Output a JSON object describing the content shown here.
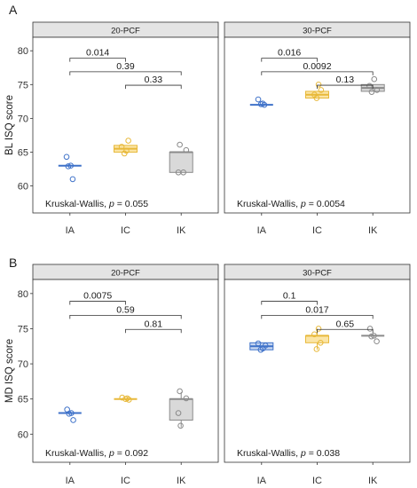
{
  "figure": {
    "colors": {
      "IA": "#3f72c9",
      "IC": "#e8b93a",
      "IK": "#8a8a8a",
      "IA_fill": "#c7d6f0",
      "IC_fill": "#fbe5a6",
      "IK_fill": "#d9d9d9"
    }
  },
  "chart_data": [
    {
      "type": "box",
      "panel_label": "A",
      "ylabel": "BL ISQ score",
      "ylim": [
        56,
        82
      ],
      "yticks": [
        60,
        65,
        70,
        75,
        80
      ],
      "categories": [
        "IA",
        "IC",
        "IK"
      ],
      "facets": [
        {
          "strip": "20-PCF",
          "boxes": [
            {
              "group": "IA",
              "q1": 63,
              "median": 63,
              "q3": 63,
              "min": 63,
              "max": 63
            },
            {
              "group": "IC",
              "q1": 65,
              "median": 65.5,
              "q3": 66,
              "min": 65,
              "max": 66
            },
            {
              "group": "IK",
              "q1": 62,
              "median": 65,
              "q3": 65,
              "min": 62,
              "max": 65
            }
          ],
          "points": [
            {
              "group": "IA",
              "y": 64.3,
              "dx": -0.12
            },
            {
              "group": "IA",
              "y": 63.0,
              "dx": 0.03
            },
            {
              "group": "IA",
              "y": 62.9,
              "dx": -0.06
            },
            {
              "group": "IA",
              "y": 61.0,
              "dx": 0.1
            },
            {
              "group": "IC",
              "y": 66.7,
              "dx": 0.1
            },
            {
              "group": "IC",
              "y": 65.8,
              "dx": -0.14
            },
            {
              "group": "IC",
              "y": 65.2,
              "dx": 0.03
            },
            {
              "group": "IC",
              "y": 64.8,
              "dx": -0.04
            },
            {
              "group": "IK",
              "y": 66.1,
              "dx": -0.05
            },
            {
              "group": "IK",
              "y": 65.3,
              "dx": 0.18
            },
            {
              "group": "IK",
              "y": 62.0,
              "dx": -0.1
            },
            {
              "group": "IK",
              "y": 62.0,
              "dx": 0.08
            }
          ],
          "brackets": [
            {
              "from": "IA",
              "to": "IC",
              "y": 78.9,
              "label": "0.014"
            },
            {
              "from": "IA",
              "to": "IK",
              "y": 76.9,
              "label": "0.39"
            },
            {
              "from": "IC",
              "to": "IK",
              "y": 74.9,
              "label": "0.33"
            }
          ],
          "test_prefix": "Kruskal-Wallis, ",
          "test_p": "p",
          "test_value": " = 0.055"
        },
        {
          "strip": "30-PCF",
          "boxes": [
            {
              "group": "IA",
              "q1": 72,
              "median": 72,
              "q3": 72,
              "min": 72,
              "max": 72
            },
            {
              "group": "IC",
              "q1": 73,
              "median": 73.5,
              "q3": 74,
              "min": 73,
              "max": 74
            },
            {
              "group": "IK",
              "q1": 74,
              "median": 74.5,
              "q3": 75,
              "min": 74,
              "max": 75
            }
          ],
          "points": [
            {
              "group": "IA",
              "y": 72.8,
              "dx": -0.12
            },
            {
              "group": "IA",
              "y": 72.2,
              "dx": 0.04
            },
            {
              "group": "IA",
              "y": 72.0,
              "dx": 0.1
            },
            {
              "group": "IA",
              "y": 72.1,
              "dx": -0.02
            },
            {
              "group": "IC",
              "y": 75.0,
              "dx": 0.05
            },
            {
              "group": "IC",
              "y": 74.2,
              "dx": 0.14
            },
            {
              "group": "IC",
              "y": 73.5,
              "dx": -0.1
            },
            {
              "group": "IC",
              "y": 73.0,
              "dx": -0.02
            },
            {
              "group": "IK",
              "y": 75.8,
              "dx": 0.05
            },
            {
              "group": "IK",
              "y": 74.8,
              "dx": -0.12
            },
            {
              "group": "IK",
              "y": 74.2,
              "dx": 0.15
            },
            {
              "group": "IK",
              "y": 73.9,
              "dx": -0.04
            }
          ],
          "brackets": [
            {
              "from": "IA",
              "to": "IC",
              "y": 78.9,
              "label": "0.016"
            },
            {
              "from": "IA",
              "to": "IK",
              "y": 76.9,
              "label": "0.0092"
            },
            {
              "from": "IC",
              "to": "IK",
              "y": 74.9,
              "label": "0.13"
            }
          ],
          "test_prefix": "Kruskal-Wallis, ",
          "test_p": "p",
          "test_value": " = 0.0054"
        }
      ]
    },
    {
      "type": "box",
      "panel_label": "B",
      "ylabel": "MD ISQ score",
      "ylim": [
        56,
        82
      ],
      "yticks": [
        60,
        65,
        70,
        75,
        80
      ],
      "categories": [
        "IA",
        "IC",
        "IK"
      ],
      "facets": [
        {
          "strip": "20-PCF",
          "boxes": [
            {
              "group": "IA",
              "q1": 63,
              "median": 63,
              "q3": 63,
              "min": 63,
              "max": 63
            },
            {
              "group": "IC",
              "q1": 65,
              "median": 65,
              "q3": 65,
              "min": 65,
              "max": 65
            },
            {
              "group": "IK",
              "q1": 62,
              "median": 65,
              "q3": 65,
              "min": 61,
              "max": 66
            }
          ],
          "points": [
            {
              "group": "IA",
              "y": 63.5,
              "dx": -0.1
            },
            {
              "group": "IA",
              "y": 63.0,
              "dx": 0.05
            },
            {
              "group": "IA",
              "y": 62.9,
              "dx": -0.03
            },
            {
              "group": "IA",
              "y": 62.0,
              "dx": 0.12
            },
            {
              "group": "IC",
              "y": 65.2,
              "dx": -0.12
            },
            {
              "group": "IC",
              "y": 65.0,
              "dx": 0.0
            },
            {
              "group": "IC",
              "y": 64.9,
              "dx": 0.12
            },
            {
              "group": "IC",
              "y": 65.1,
              "dx": 0.06
            },
            {
              "group": "IK",
              "y": 66.1,
              "dx": -0.05
            },
            {
              "group": "IK",
              "y": 65.1,
              "dx": 0.18
            },
            {
              "group": "IK",
              "y": 63.0,
              "dx": -0.1
            },
            {
              "group": "IK",
              "y": 61.2,
              "dx": -0.02
            }
          ],
          "brackets": [
            {
              "from": "IA",
              "to": "IC",
              "y": 78.9,
              "label": "0.0075"
            },
            {
              "from": "IA",
              "to": "IK",
              "y": 76.9,
              "label": "0.59"
            },
            {
              "from": "IC",
              "to": "IK",
              "y": 74.9,
              "label": "0.81"
            }
          ],
          "test_prefix": "Kruskal-Wallis, ",
          "test_p": "p",
          "test_value": " = 0.092"
        },
        {
          "strip": "30-PCF",
          "boxes": [
            {
              "group": "IA",
              "q1": 72,
              "median": 72.5,
              "q3": 73,
              "min": 72,
              "max": 73
            },
            {
              "group": "IC",
              "q1": 73,
              "median": 74,
              "q3": 74,
              "min": 72,
              "max": 75
            },
            {
              "group": "IK",
              "q1": 74,
              "median": 74,
              "q3": 74,
              "min": 74,
              "max": 74
            }
          ],
          "points": [
            {
              "group": "IA",
              "y": 72.9,
              "dx": -0.12
            },
            {
              "group": "IA",
              "y": 72.6,
              "dx": 0.14
            },
            {
              "group": "IA",
              "y": 72.2,
              "dx": 0.05
            },
            {
              "group": "IA",
              "y": 72.0,
              "dx": -0.03
            },
            {
              "group": "IC",
              "y": 75.0,
              "dx": 0.05
            },
            {
              "group": "IC",
              "y": 74.2,
              "dx": -0.1
            },
            {
              "group": "IC",
              "y": 73.0,
              "dx": 0.12
            },
            {
              "group": "IC",
              "y": 72.1,
              "dx": -0.02
            },
            {
              "group": "IK",
              "y": 75.0,
              "dx": -0.1
            },
            {
              "group": "IK",
              "y": 74.0,
              "dx": 0.04
            },
            {
              "group": "IK",
              "y": 73.2,
              "dx": 0.14
            },
            {
              "group": "IK",
              "y": 73.9,
              "dx": -0.05
            }
          ],
          "brackets": [
            {
              "from": "IA",
              "to": "IC",
              "y": 78.9,
              "label": "0.1"
            },
            {
              "from": "IA",
              "to": "IK",
              "y": 76.9,
              "label": "0.017"
            },
            {
              "from": "IC",
              "to": "IK",
              "y": 74.9,
              "label": "0.65"
            }
          ],
          "test_prefix": "Kruskal-Wallis, ",
          "test_p": "p",
          "test_value": " = 0.038"
        }
      ]
    }
  ]
}
